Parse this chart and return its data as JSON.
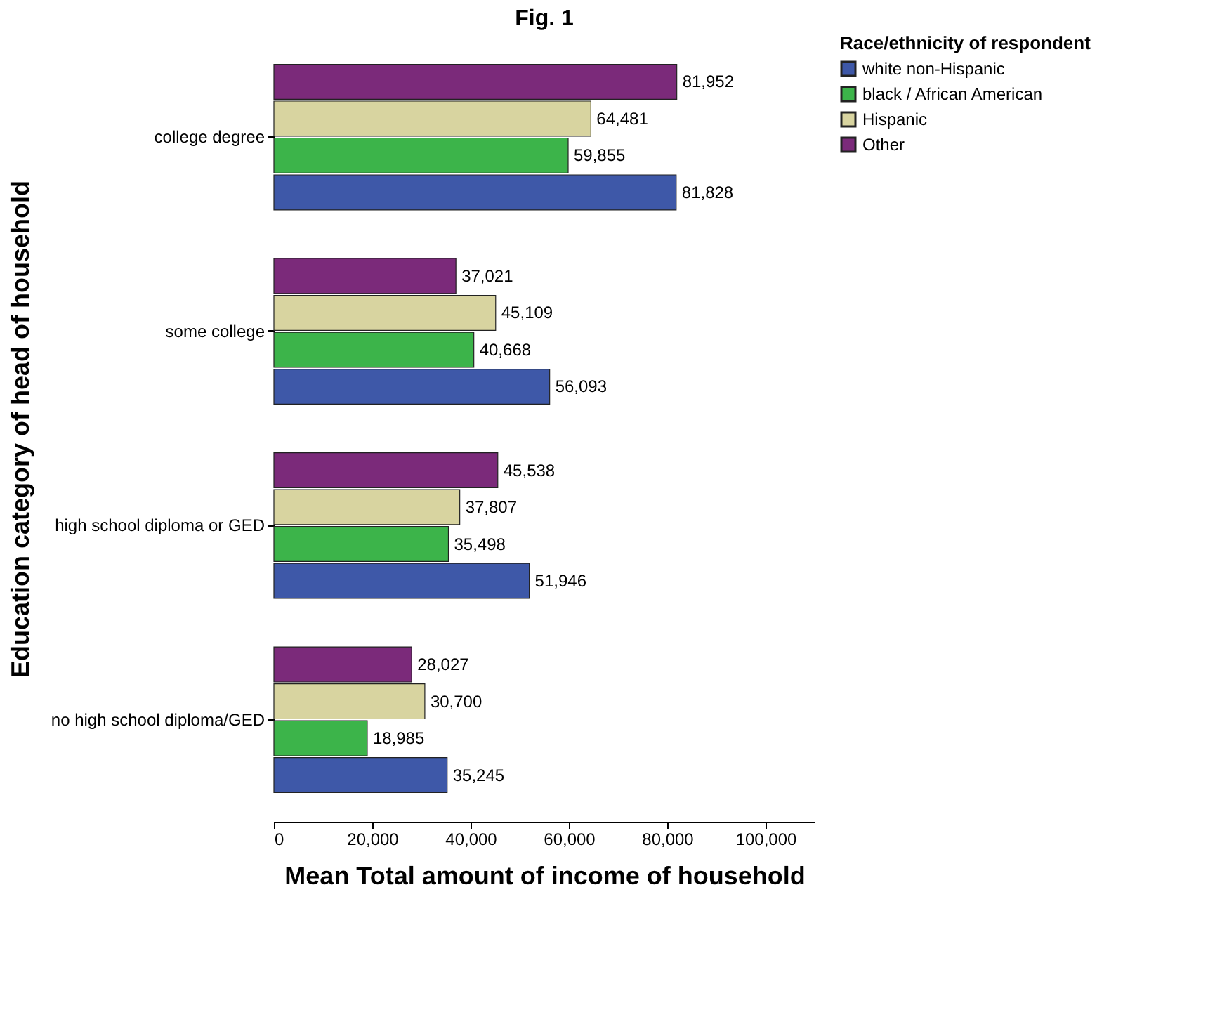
{
  "chart_data": {
    "type": "bar",
    "orientation": "horizontal",
    "title": "Fig. 1",
    "xlabel": "Mean Total amount of income of household",
    "ylabel": "Education category of head of household",
    "legend_title": "Race/ethnicity of respondent",
    "categories": [
      "college degree",
      "some college",
      "high school diploma or GED",
      "no high school diploma/GED"
    ],
    "series": [
      {
        "name": "white non-Hispanic",
        "color": "#3e58a8",
        "values": [
          81828,
          56093,
          51946,
          35245
        ],
        "value_labels": [
          "81,828",
          "56,093",
          "51,946",
          "35,245"
        ]
      },
      {
        "name": "black / African American",
        "color": "#3cb44a",
        "values": [
          59855,
          40668,
          35498,
          18985
        ],
        "value_labels": [
          "59,855",
          "40,668",
          "35,498",
          "18,985"
        ]
      },
      {
        "name": "Hispanic",
        "color": "#d8d4a0",
        "values": [
          64481,
          45109,
          37807,
          30700
        ],
        "value_labels": [
          "64,481",
          "45,109",
          "37,807",
          "30,700"
        ]
      },
      {
        "name": "Other",
        "color": "#7b2a7a",
        "values": [
          81952,
          37021,
          45538,
          28027
        ],
        "value_labels": [
          "81,952",
          "37,021",
          "45,538",
          "28,027"
        ]
      }
    ],
    "xlim": [
      0,
      110000
    ],
    "xticks": [
      {
        "value": 0,
        "label": "0"
      },
      {
        "value": 20000,
        "label": "20,000"
      },
      {
        "value": 40000,
        "label": "40,000"
      },
      {
        "value": 60000,
        "label": "60,000"
      },
      {
        "value": 80000,
        "label": "80,000"
      },
      {
        "value": 100000,
        "label": "100,000"
      }
    ],
    "grid": false,
    "legend": "top right"
  }
}
